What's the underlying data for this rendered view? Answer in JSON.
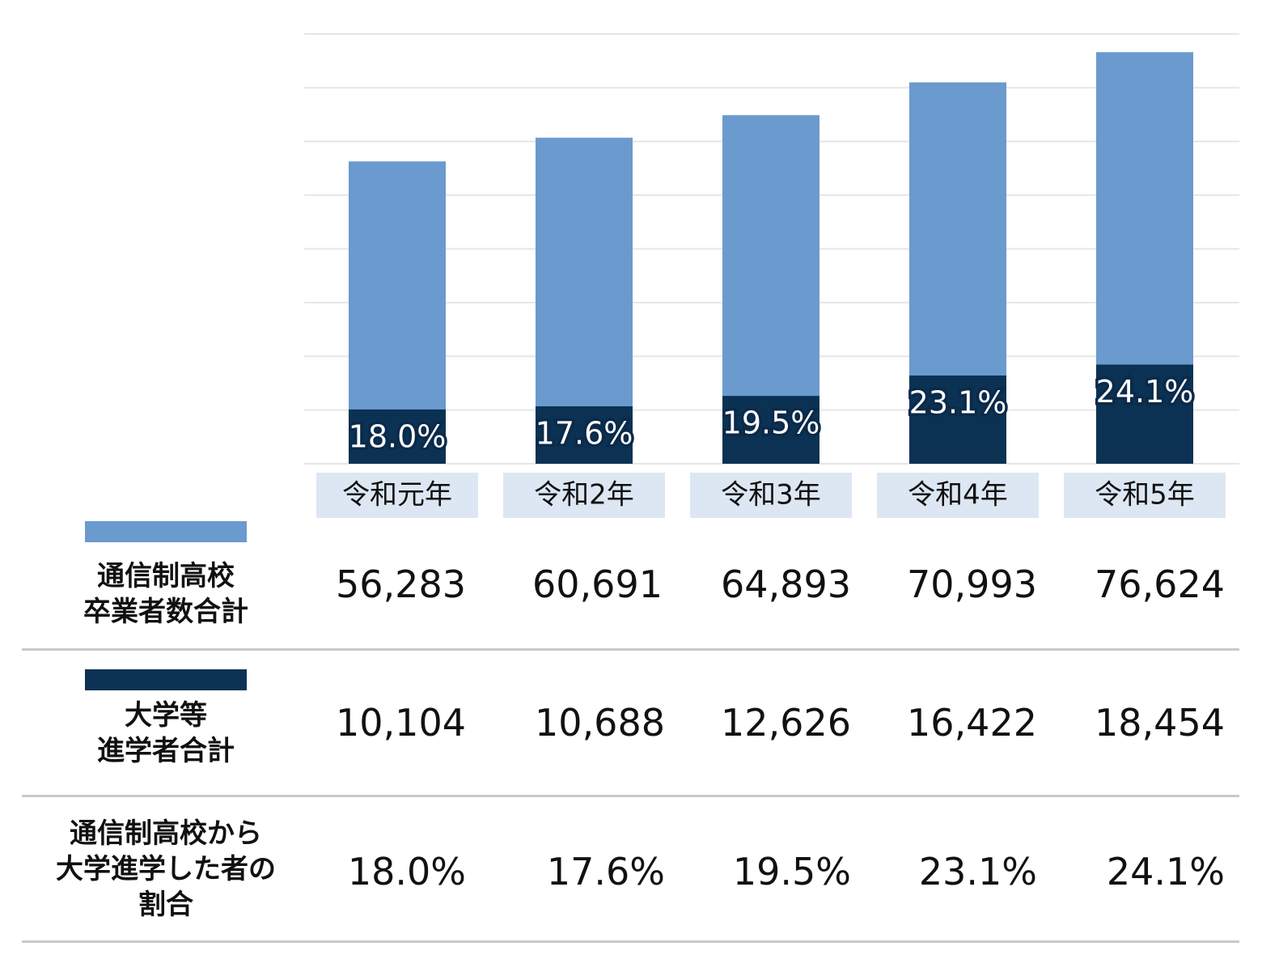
{
  "chart_data": {
    "type": "bar",
    "stacked": false,
    "categories": [
      "令和元年",
      "令和2年",
      "令和3年",
      "令和4年",
      "令和5年"
    ],
    "series": [
      {
        "name": "通信制高校\n卒業者数合計",
        "color": "#6b9ace",
        "values": [
          56283,
          60691,
          64893,
          70993,
          76624
        ]
      },
      {
        "name": "大学等\n進学者合計",
        "color": "#0b3253",
        "values": [
          10104,
          10688,
          12626,
          16422,
          18454
        ]
      }
    ],
    "bar_labels": [
      "18.0%",
      "17.6%",
      "19.5%",
      "23.1%",
      "24.1%"
    ],
    "ylim": [
      0,
      80000
    ],
    "grid": true
  },
  "table": {
    "rows": [
      {
        "label": "通信制高校\n卒業者数合計",
        "cells": [
          "56,283",
          "60,691",
          "64,893",
          "70,993",
          "76,624"
        ]
      },
      {
        "label": "大学等\n進学者合計",
        "cells": [
          "10,104",
          "10,688",
          "12,626",
          "16,422",
          "18,454"
        ]
      },
      {
        "label": "通信制高校から\n大学進学した者の\n割合",
        "cells": [
          "18.0%",
          "17.6%",
          "19.5%",
          "23.1%",
          "24.1%"
        ]
      }
    ]
  }
}
